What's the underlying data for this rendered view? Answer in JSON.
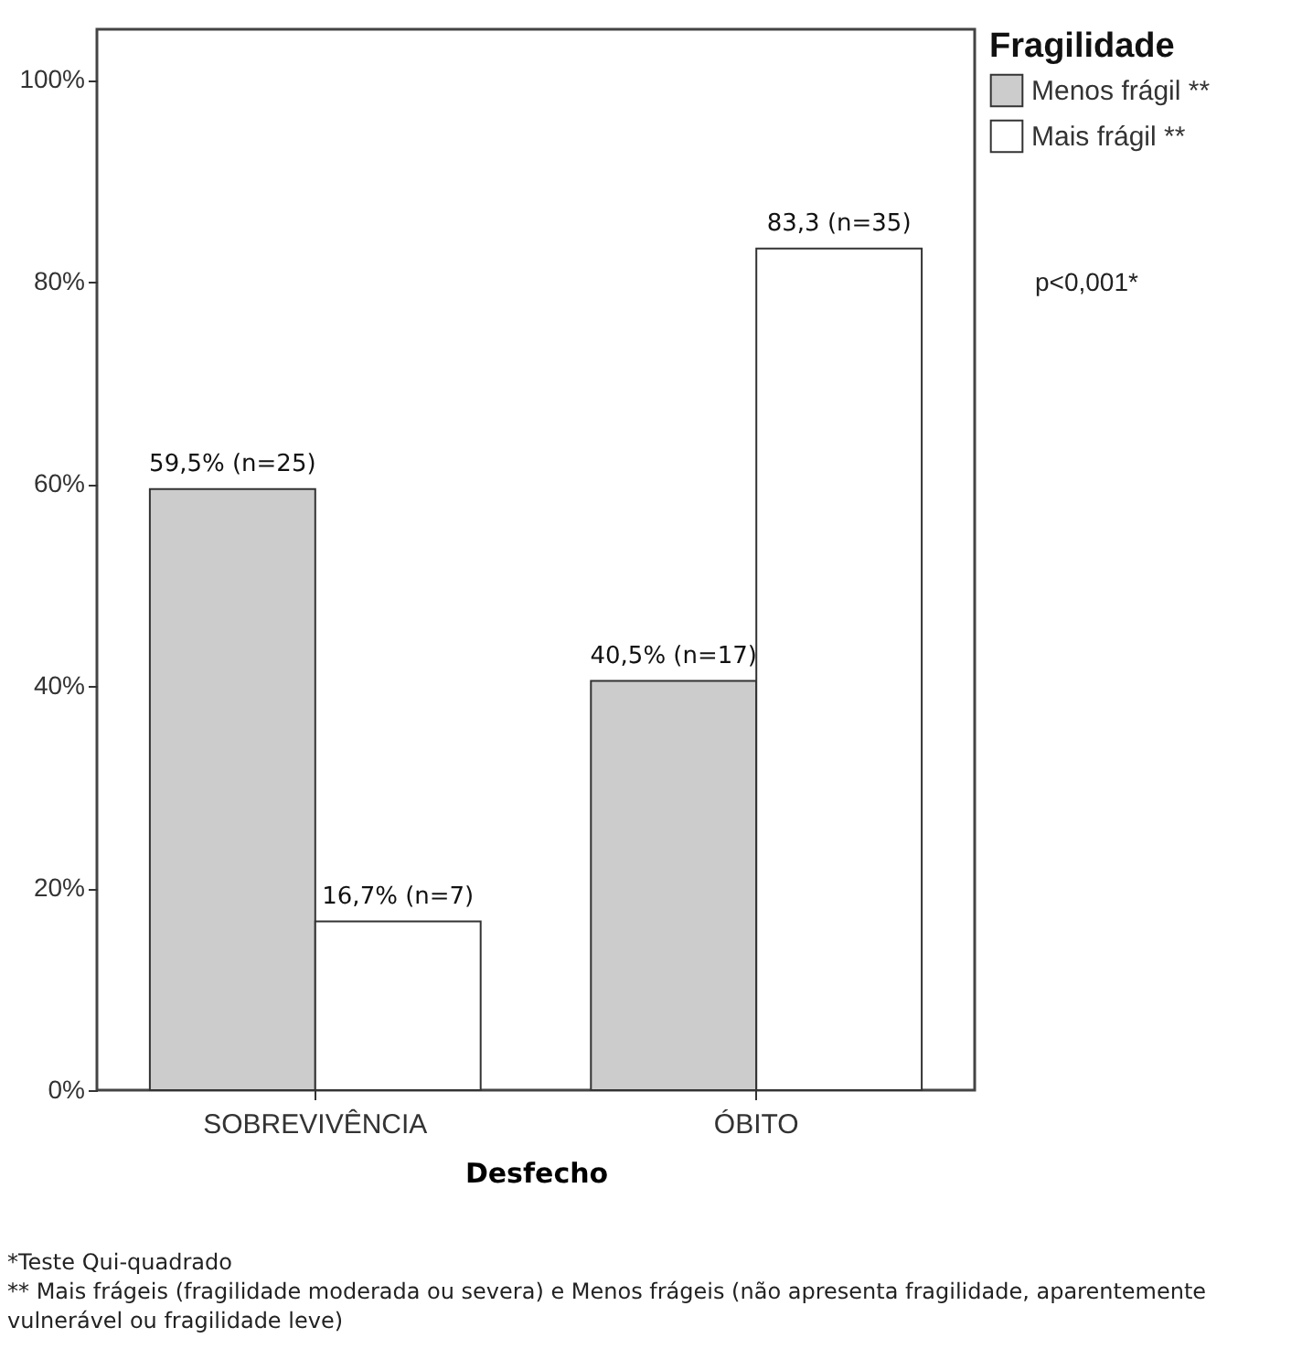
{
  "chart_data": {
    "type": "bar",
    "xlabel": "Desfecho",
    "legend_title": "Fragilidade",
    "categories": [
      "SOBREVIVÊNCIA",
      "ÓBITO"
    ],
    "series": [
      {
        "name": "Menos frágil **",
        "color": "#cccccc",
        "values": [
          59.5,
          40.5
        ],
        "value_labels": [
          "59,5% (n=25)",
          "40,5% (n=17)"
        ]
      },
      {
        "name": "Mais frágil **",
        "color": "#ffffff",
        "values": [
          16.7,
          83.3
        ],
        "value_labels": [
          "16,7% (n=7)",
          "83,3 (n=35)"
        ]
      }
    ],
    "ylim": [
      0,
      105
    ],
    "yticks": [
      {
        "value": 0,
        "label": "0%"
      },
      {
        "value": 20,
        "label": "20%"
      },
      {
        "value": 40,
        "label": "40%"
      },
      {
        "value": 60,
        "label": "60%"
      },
      {
        "value": 80,
        "label": "80%"
      },
      {
        "value": 100,
        "label": "100%"
      }
    ],
    "grid": false,
    "legend": "top right",
    "annotations": [
      "p<0,001*",
      "*Teste Qui-quadrado",
      "** Mais frágeis (fragilidade moderada ou severa) e Menos frágeis (não apresenta fragilidade, aparentemente vulnerável ou fragilidade leve)"
    ]
  }
}
